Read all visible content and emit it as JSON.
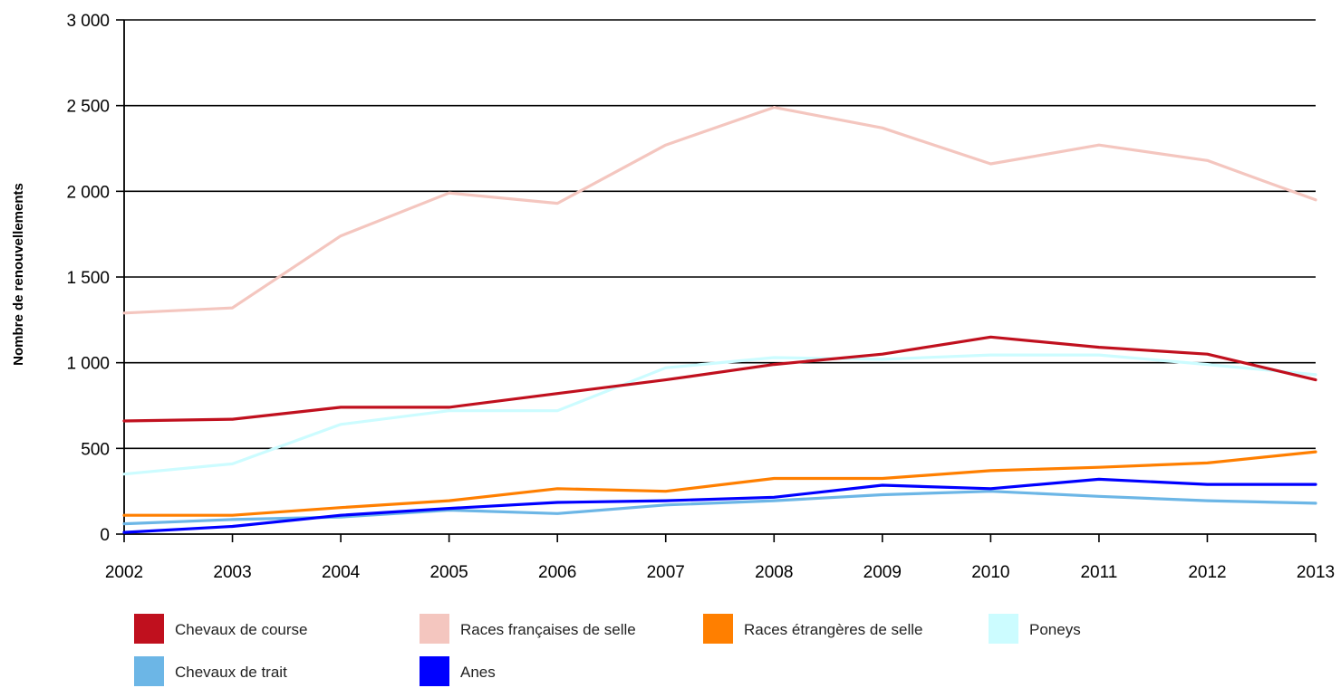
{
  "chart_data": {
    "type": "line",
    "title": "",
    "xlabel": "",
    "ylabel": "Nombre de renouvellements",
    "x": [
      "2002",
      "2003",
      "2004",
      "2005",
      "2006",
      "2007",
      "2008",
      "2009",
      "2010",
      "2011",
      "2012",
      "2013"
    ],
    "ylim": [
      0,
      3000
    ],
    "yticks": [
      {
        "value": 0,
        "label": "0"
      },
      {
        "value": 500,
        "label": "500"
      },
      {
        "value": 1000,
        "label": "1 000"
      },
      {
        "value": 1500,
        "label": "1 500"
      },
      {
        "value": 2000,
        "label": "2 000"
      },
      {
        "value": 2500,
        "label": "2 500"
      },
      {
        "value": 3000,
        "label": "3 000"
      }
    ],
    "grid": "horizontal",
    "legend_position": "bottom",
    "series": [
      {
        "name": "Chevaux de course",
        "color": "#c0101e",
        "values": [
          660,
          670,
          740,
          740,
          820,
          900,
          990,
          1050,
          1150,
          1090,
          1050,
          900
        ]
      },
      {
        "name": "Races françaises de selle",
        "color": "#f4c6bf",
        "values": [
          1290,
          1320,
          1740,
          1990,
          1930,
          2270,
          2490,
          2370,
          2160,
          2270,
          2180,
          1950
        ]
      },
      {
        "name": "Races étrangères de selle",
        "color": "#ff7f00",
        "values": [
          110,
          110,
          155,
          195,
          265,
          250,
          325,
          325,
          370,
          390,
          415,
          480
        ]
      },
      {
        "name": "Poneys",
        "color": "#ccfcff",
        "values": [
          350,
          410,
          640,
          720,
          720,
          970,
          1030,
          1020,
          1045,
          1045,
          990,
          930
        ]
      },
      {
        "name": "Chevaux de trait",
        "color": "#6cb6e6",
        "values": [
          60,
          85,
          100,
          140,
          120,
          170,
          195,
          230,
          250,
          220,
          195,
          180
        ]
      },
      {
        "name": "Anes",
        "color": "#0000ff",
        "values": [
          10,
          45,
          110,
          150,
          185,
          195,
          215,
          285,
          265,
          320,
          290,
          290
        ]
      }
    ]
  }
}
